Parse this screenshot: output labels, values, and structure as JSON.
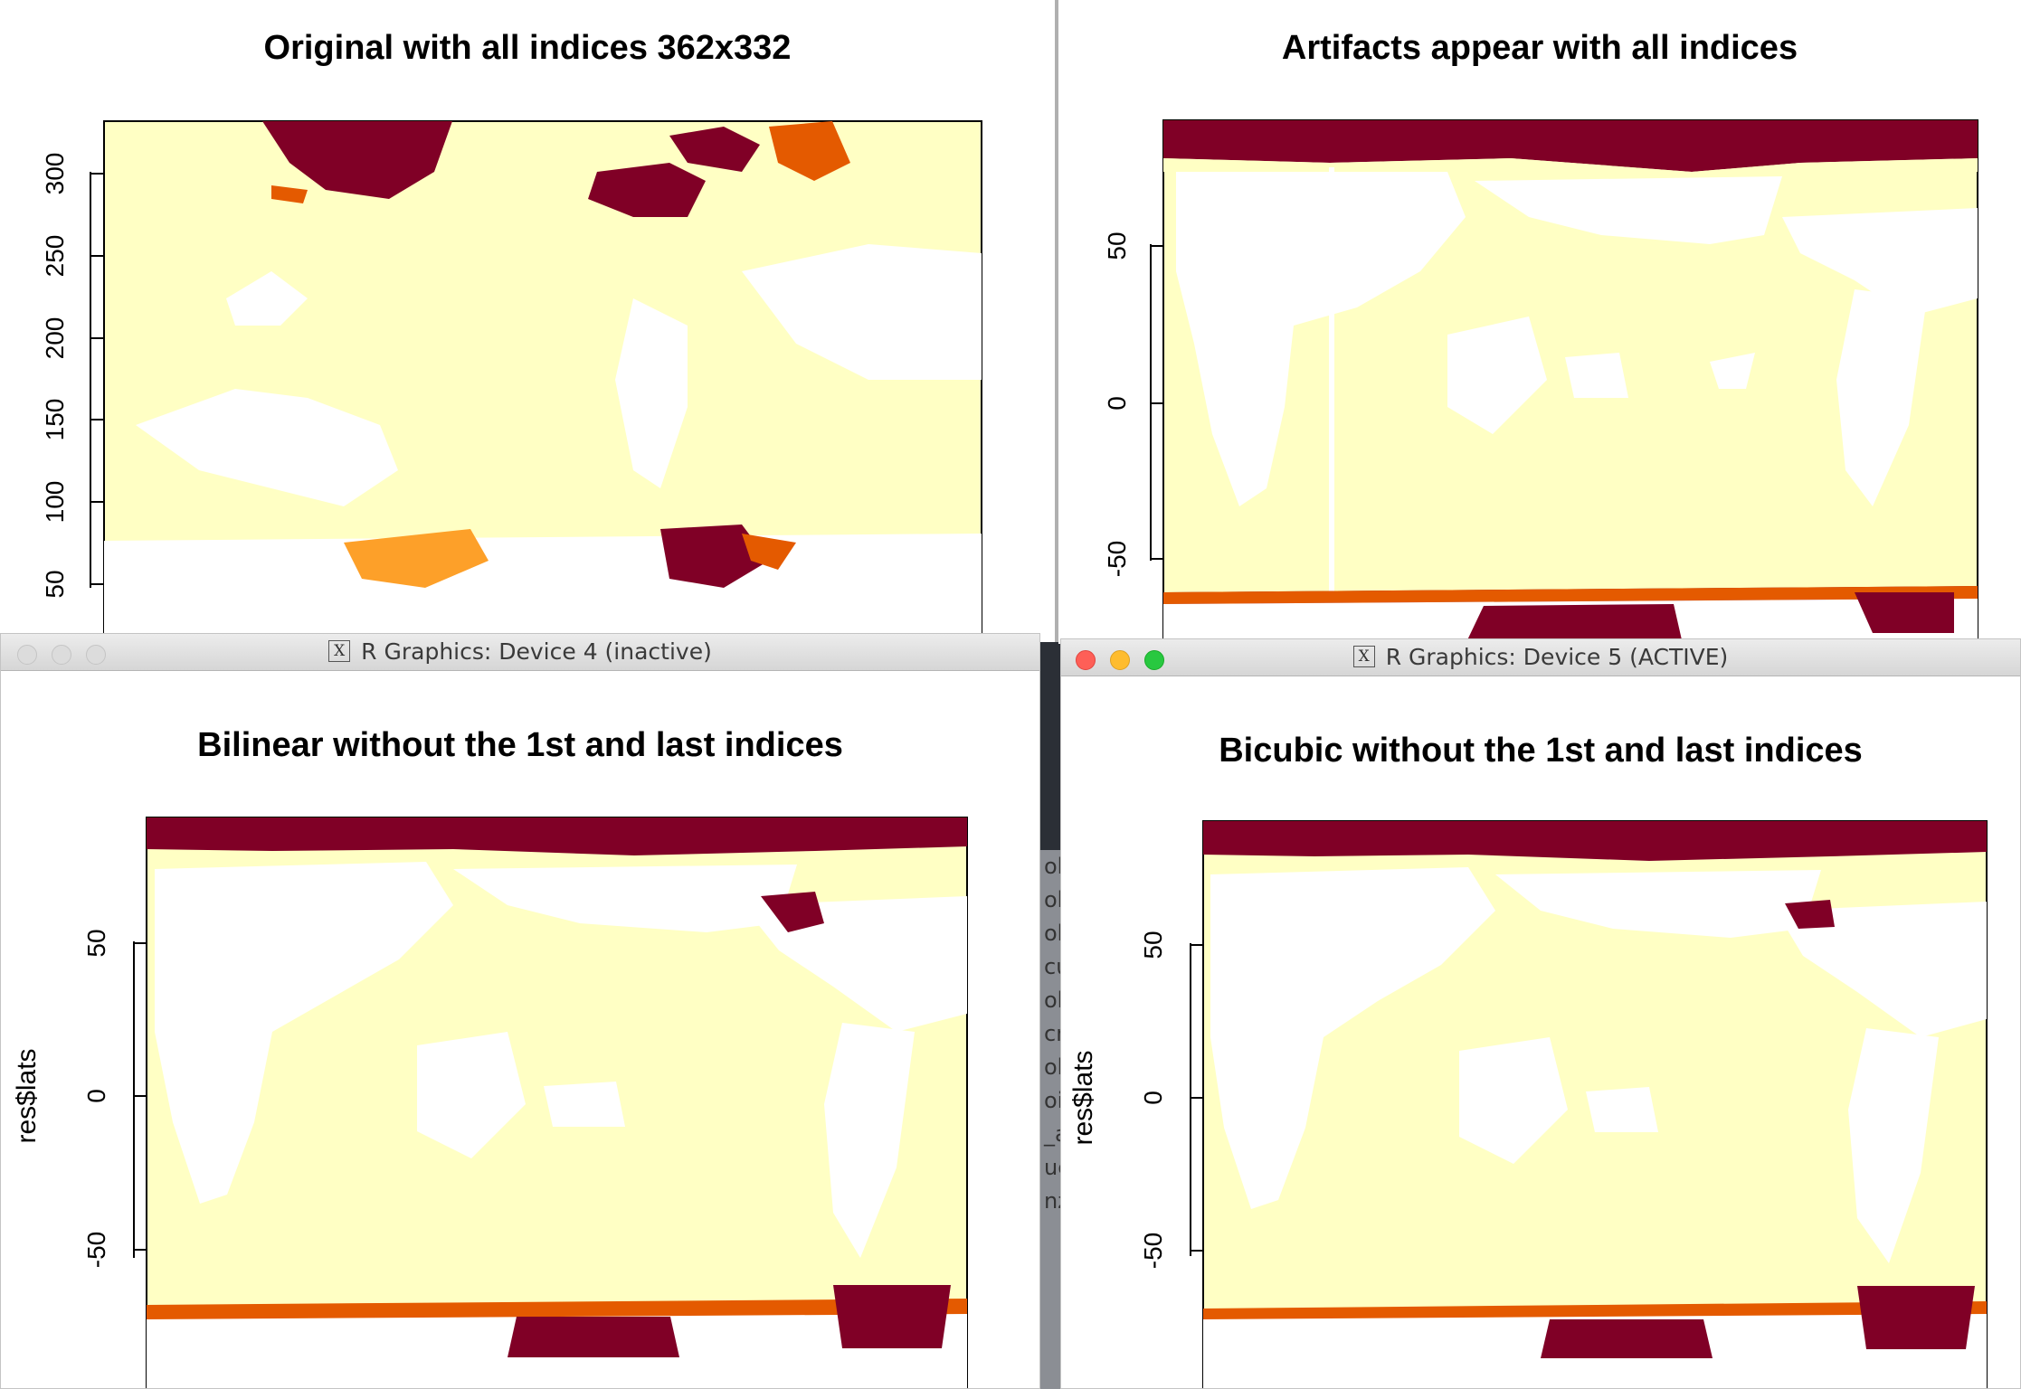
{
  "colors": {
    "ocean": "#ffffc4",
    "ice_dark": "#800026",
    "ice_mid": "#e45a00",
    "ice_light": "#fda029",
    "land": "#ffffff"
  },
  "plots": {
    "original": {
      "title": "Original with all indices 362x332",
      "yticks": [
        "300",
        "250",
        "200",
        "150",
        "100",
        "50"
      ]
    },
    "artifacts": {
      "title": "Artifacts appear with all indices",
      "yticks": [
        "50",
        "0",
        "-50"
      ]
    },
    "bilinear": {
      "window_title": "R Graphics: Device 4 (inactive)",
      "title": "Bilinear without the 1st and last indices",
      "yticks": [
        "50",
        "0",
        "-50"
      ],
      "ylabel": "res$lats"
    },
    "bicubic": {
      "window_title": "R Graphics: Device 5 (ACTIVE)",
      "title": "Bicubic without the 1st and last indices",
      "yticks": [
        "50",
        "0",
        "-50"
      ],
      "ylabel": "res$lats"
    }
  },
  "background_window": {
    "fragments": [
      "ob",
      "ob",
      "ob",
      "cu",
      "ob",
      "cr",
      "ob",
      "oi",
      "_a",
      "uc",
      "nz"
    ]
  },
  "x_icon_glyph": "X"
}
